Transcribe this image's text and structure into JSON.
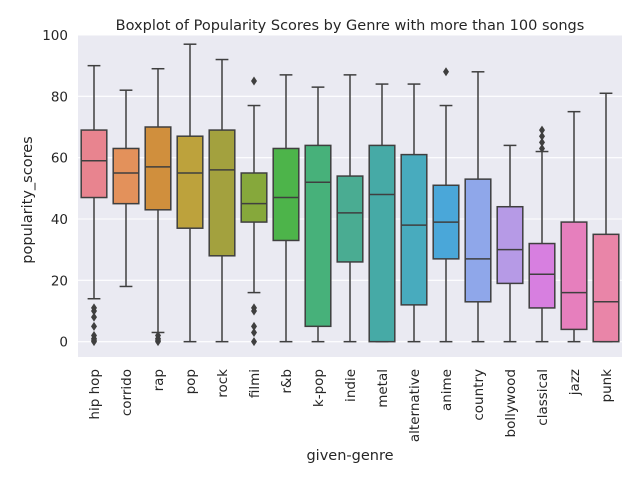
{
  "chart_data": {
    "type": "boxplot",
    "title": "Boxplot of Popularity Scores by Genre with more than 100 songs",
    "xlabel": "given-genre",
    "ylabel": "popularity_scores",
    "ylim": [
      -5,
      100
    ],
    "yticks": [
      0,
      20,
      40,
      60,
      80,
      100
    ],
    "grid": true,
    "legend": "none",
    "background_color": "#eaeaf2",
    "categories": [
      "hip hop",
      "corrido",
      "rap",
      "pop",
      "rock",
      "filmi",
      "r&b",
      "k-pop",
      "indie",
      "metal",
      "alternative",
      "anime",
      "country",
      "bollywood",
      "classical",
      "jazz",
      "punk"
    ],
    "boxes": [
      {
        "genre": "hip hop",
        "whisker_low": 14,
        "q1": 47,
        "median": 59,
        "q3": 69,
        "whisker_high": 90,
        "outliers": [
          11,
          10,
          8,
          5,
          2,
          1,
          0.5,
          0
        ],
        "color": "#e8848f"
      },
      {
        "genre": "corrido",
        "whisker_low": 18,
        "q1": 45,
        "median": 55,
        "q3": 63,
        "whisker_high": 82,
        "outliers": [],
        "color": "#e3915b"
      },
      {
        "genre": "rap",
        "whisker_low": 3,
        "q1": 43,
        "median": 57,
        "q3": 70,
        "whisker_high": 89,
        "outliers": [
          2,
          1,
          0.5,
          0
        ],
        "color": "#d08f3d"
      },
      {
        "genre": "pop",
        "whisker_low": 0,
        "q1": 37,
        "median": 55,
        "q3": 67,
        "whisker_high": 97,
        "outliers": [],
        "color": "#bda23c"
      },
      {
        "genre": "rock",
        "whisker_low": 0,
        "q1": 28,
        "median": 56,
        "q3": 69,
        "whisker_high": 92,
        "outliers": [],
        "color": "#a3a13e"
      },
      {
        "genre": "filmi",
        "whisker_low": 16,
        "q1": 39,
        "median": 45,
        "q3": 55,
        "whisker_high": 77,
        "outliers": [
          85,
          11,
          10,
          5,
          3,
          0
        ],
        "color": "#86a83b"
      },
      {
        "genre": "r&b",
        "whisker_low": 0,
        "q1": 33,
        "median": 47,
        "q3": 63,
        "whisker_high": 87,
        "outliers": [],
        "color": "#4db44a"
      },
      {
        "genre": "k-pop",
        "whisker_low": 0,
        "q1": 5,
        "median": 52,
        "q3": 64,
        "whisker_high": 83,
        "outliers": [],
        "color": "#47b17a"
      },
      {
        "genre": "indie",
        "whisker_low": 0,
        "q1": 26,
        "median": 42,
        "q3": 54,
        "whisker_high": 87,
        "outliers": [],
        "color": "#4aac92"
      },
      {
        "genre": "metal",
        "whisker_low": 0,
        "q1": 0,
        "median": 48,
        "q3": 64,
        "whisker_high": 84,
        "outliers": [],
        "color": "#46aaa6"
      },
      {
        "genre": "alternative",
        "whisker_low": 0,
        "q1": 12,
        "median": 38,
        "q3": 61,
        "whisker_high": 84,
        "outliers": [],
        "color": "#48abbe"
      },
      {
        "genre": "anime",
        "whisker_low": 0,
        "q1": 27,
        "median": 39,
        "q3": 51,
        "whisker_high": 77,
        "outliers": [
          88
        ],
        "color": "#4aa7d9"
      },
      {
        "genre": "country",
        "whisker_low": 0,
        "q1": 13,
        "median": 27,
        "q3": 53,
        "whisker_high": 88,
        "outliers": [],
        "color": "#8fa7ea"
      },
      {
        "genre": "bollywood",
        "whisker_low": 0,
        "q1": 19,
        "median": 30,
        "q3": 44,
        "whisker_high": 64,
        "outliers": [],
        "color": "#b69ae6"
      },
      {
        "genre": "classical",
        "whisker_low": 0,
        "q1": 11,
        "median": 22,
        "q3": 32,
        "whisker_high": 62,
        "outliers": [
          63,
          65,
          67,
          69
        ],
        "color": "#d77fe0"
      },
      {
        "genre": "jazz",
        "whisker_low": 0,
        "q1": 4,
        "median": 16,
        "q3": 39,
        "whisker_high": 75,
        "outliers": [],
        "color": "#e67fbd"
      },
      {
        "genre": "punk",
        "whisker_low": 0,
        "q1": 0,
        "median": 13,
        "q3": 35,
        "whisker_high": 81,
        "outliers": [],
        "color": "#e985a8"
      }
    ]
  }
}
